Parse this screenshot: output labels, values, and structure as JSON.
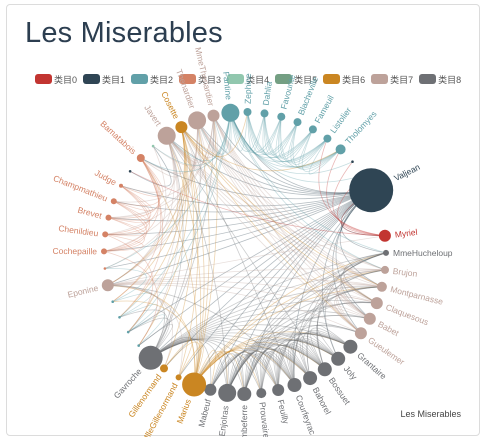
{
  "title": "Les Miserables",
  "caption": "Les Miserables",
  "legend": [
    {
      "label": "类目0",
      "color": "#c23531"
    },
    {
      "label": "类目1",
      "color": "#2f4554"
    },
    {
      "label": "类目2",
      "color": "#61a0a8"
    },
    {
      "label": "类目3",
      "color": "#d48265"
    },
    {
      "label": "类目4",
      "color": "#91c7ae"
    },
    {
      "label": "类目5",
      "color": "#749f83"
    },
    {
      "label": "类目6",
      "color": "#ca8622"
    },
    {
      "label": "类目7",
      "color": "#bda29a"
    },
    {
      "label": "类目8",
      "color": "#6e7074"
    }
  ],
  "graph": {
    "layout": "circular",
    "nodes": [
      {
        "name": "Myriel",
        "category": 0,
        "size": 6
      },
      {
        "name": "MmeHucheloup",
        "category": 8,
        "size": 3
      },
      {
        "name": "Brujon",
        "category": 7,
        "size": 4
      },
      {
        "name": "Montparnasse",
        "category": 7,
        "size": 5
      },
      {
        "name": "Claquesous",
        "category": 7,
        "size": 6
      },
      {
        "name": "Babet",
        "category": 7,
        "size": 6
      },
      {
        "name": "Gueulemer",
        "category": 7,
        "size": 6
      },
      {
        "name": "Grantaire",
        "category": 8,
        "size": 7
      },
      {
        "name": "Joly",
        "category": 8,
        "size": 7
      },
      {
        "name": "Bossuet",
        "category": 8,
        "size": 7
      },
      {
        "name": "Bahorel",
        "category": 8,
        "size": 7
      },
      {
        "name": "Courfeyrac",
        "category": 8,
        "size": 7
      },
      {
        "name": "Feuilly",
        "category": 8,
        "size": 6
      },
      {
        "name": "Prouvaire",
        "category": 8,
        "size": 5
      },
      {
        "name": "Combeferre",
        "category": 8,
        "size": 7
      },
      {
        "name": "Enjolras",
        "category": 8,
        "size": 9
      },
      {
        "name": "Mabeuf",
        "category": 8,
        "size": 6
      },
      {
        "name": "Marius",
        "category": 6,
        "size": 12
      },
      {
        "name": "MlleGillenormand",
        "category": 6,
        "size": 3
      },
      {
        "name": "Gillenormand",
        "category": 6,
        "size": 4
      },
      {
        "name": "Gavroche",
        "category": 8,
        "size": 12
      },
      {
        "name": "",
        "category": 2,
        "size": 1.3
      },
      {
        "name": "",
        "category": 2,
        "size": 1.3
      },
      {
        "name": "",
        "category": 2,
        "size": 1.3
      },
      {
        "name": "",
        "category": 2,
        "size": 1.3
      },
      {
        "name": "Eponine",
        "category": 7,
        "size": 6
      },
      {
        "name": "",
        "category": 3,
        "size": 1.3
      },
      {
        "name": "Cochepaille",
        "category": 3,
        "size": 3
      },
      {
        "name": "Chenildieu",
        "category": 3,
        "size": 3
      },
      {
        "name": "Brevet",
        "category": 3,
        "size": 3
      },
      {
        "name": "Champmathieu",
        "category": 3,
        "size": 3
      },
      {
        "name": "Judge",
        "category": 3,
        "size": 2
      },
      {
        "name": "",
        "category": 1,
        "size": 1.3
      },
      {
        "name": "Bamatabois",
        "category": 3,
        "size": 4
      },
      {
        "name": "",
        "category": 4,
        "size": 1.3
      },
      {
        "name": "Javert",
        "category": 7,
        "size": 9
      },
      {
        "name": "Cosette",
        "category": 6,
        "size": 6
      },
      {
        "name": "Thenardier",
        "category": 7,
        "size": 9
      },
      {
        "name": "MmeThenardier",
        "category": 7,
        "size": 6
      },
      {
        "name": "Fantine",
        "category": 2,
        "size": 9
      },
      {
        "name": "Zephine",
        "category": 2,
        "size": 4
      },
      {
        "name": "Dahlia",
        "category": 2,
        "size": 4
      },
      {
        "name": "Favourite",
        "category": 2,
        "size": 4
      },
      {
        "name": "Blacheville",
        "category": 2,
        "size": 4
      },
      {
        "name": "Fameuil",
        "category": 2,
        "size": 4
      },
      {
        "name": "Listolier",
        "category": 2,
        "size": 4
      },
      {
        "name": "Tholomyes",
        "category": 2,
        "size": 5
      },
      {
        "name": "",
        "category": 1,
        "size": 1.3
      },
      {
        "name": "",
        "category": 1,
        "size": 1.3
      },
      {
        "name": "Valjean",
        "category": 1,
        "size": 22
      }
    ],
    "links": [
      [
        49,
        0
      ],
      [
        49,
        1
      ],
      [
        49,
        3
      ],
      [
        49,
        5
      ],
      [
        49,
        6
      ],
      [
        49,
        8
      ],
      [
        49,
        11
      ],
      [
        49,
        14
      ],
      [
        49,
        15
      ],
      [
        49,
        16
      ],
      [
        49,
        17
      ],
      [
        49,
        18
      ],
      [
        49,
        19
      ],
      [
        49,
        20
      ],
      [
        49,
        25
      ],
      [
        49,
        27
      ],
      [
        49,
        28
      ],
      [
        49,
        29
      ],
      [
        49,
        30
      ],
      [
        49,
        31
      ],
      [
        49,
        33
      ],
      [
        49,
        35
      ],
      [
        49,
        36
      ],
      [
        49,
        37
      ],
      [
        49,
        38
      ],
      [
        49,
        39
      ],
      [
        49,
        26
      ],
      [
        49,
        21
      ],
      [
        49,
        22
      ],
      [
        0,
        47
      ],
      [
        0,
        48
      ],
      [
        0,
        46
      ],
      [
        0,
        49
      ],
      [
        0,
        32
      ],
      [
        0,
        45
      ],
      [
        20,
        7
      ],
      [
        20,
        8
      ],
      [
        20,
        9
      ],
      [
        20,
        10
      ],
      [
        20,
        11
      ],
      [
        20,
        12
      ],
      [
        20,
        13
      ],
      [
        20,
        14
      ],
      [
        20,
        15
      ],
      [
        20,
        16
      ],
      [
        20,
        17
      ],
      [
        20,
        25
      ],
      [
        20,
        35
      ],
      [
        20,
        37
      ],
      [
        20,
        38
      ],
      [
        20,
        3
      ],
      [
        20,
        4
      ],
      [
        20,
        5
      ],
      [
        20,
        6
      ],
      [
        20,
        2
      ],
      [
        20,
        1
      ],
      [
        17,
        7
      ],
      [
        17,
        8
      ],
      [
        17,
        9
      ],
      [
        17,
        10
      ],
      [
        17,
        11
      ],
      [
        17,
        12
      ],
      [
        17,
        13
      ],
      [
        17,
        14
      ],
      [
        17,
        15
      ],
      [
        17,
        16
      ],
      [
        17,
        18
      ],
      [
        17,
        19
      ],
      [
        17,
        25
      ],
      [
        17,
        36
      ],
      [
        17,
        37
      ],
      [
        17,
        38
      ],
      [
        17,
        1
      ],
      [
        17,
        2
      ],
      [
        17,
        3
      ],
      [
        17,
        33
      ],
      [
        17,
        35
      ],
      [
        15,
        7
      ],
      [
        15,
        8
      ],
      [
        15,
        9
      ],
      [
        15,
        10
      ],
      [
        15,
        11
      ],
      [
        15,
        12
      ],
      [
        15,
        13
      ],
      [
        15,
        14
      ],
      [
        15,
        16
      ],
      [
        15,
        1
      ],
      [
        15,
        35
      ],
      [
        15,
        2
      ],
      [
        15,
        3
      ],
      [
        15,
        4
      ],
      [
        15,
        5
      ],
      [
        15,
        6
      ],
      [
        11,
        7
      ],
      [
        11,
        8
      ],
      [
        11,
        9
      ],
      [
        11,
        10
      ],
      [
        11,
        12
      ],
      [
        11,
        13
      ],
      [
        11,
        14
      ],
      [
        11,
        16
      ],
      [
        11,
        1
      ],
      [
        11,
        25
      ],
      [
        11,
        36
      ],
      [
        11,
        3
      ],
      [
        11,
        4
      ],
      [
        9,
        7
      ],
      [
        9,
        8
      ],
      [
        9,
        10
      ],
      [
        9,
        12
      ],
      [
        9,
        13
      ],
      [
        9,
        14
      ],
      [
        9,
        16
      ],
      [
        9,
        1
      ],
      [
        9,
        35
      ],
      [
        9,
        2
      ],
      [
        9,
        3
      ],
      [
        14,
        7
      ],
      [
        14,
        8
      ],
      [
        14,
        10
      ],
      [
        14,
        12
      ],
      [
        14,
        13
      ],
      [
        14,
        16
      ],
      [
        14,
        1
      ],
      [
        14,
        4
      ],
      [
        14,
        5
      ],
      [
        10,
        7
      ],
      [
        10,
        8
      ],
      [
        10,
        12
      ],
      [
        10,
        13
      ],
      [
        10,
        16
      ],
      [
        10,
        1
      ],
      [
        10,
        2
      ],
      [
        8,
        7
      ],
      [
        8,
        12
      ],
      [
        8,
        13
      ],
      [
        8,
        16
      ],
      [
        8,
        1
      ],
      [
        12,
        7
      ],
      [
        12,
        13
      ],
      [
        12,
        16
      ],
      [
        12,
        3
      ],
      [
        12,
        6
      ],
      [
        37,
        2
      ],
      [
        37,
        3
      ],
      [
        37,
        4
      ],
      [
        37,
        5
      ],
      [
        37,
        6
      ],
      [
        37,
        38
      ],
      [
        37,
        35
      ],
      [
        37,
        25
      ],
      [
        37,
        36
      ],
      [
        37,
        33
      ],
      [
        37,
        26
      ],
      [
        37,
        27
      ],
      [
        37,
        28
      ],
      [
        38,
        2
      ],
      [
        38,
        3
      ],
      [
        38,
        4
      ],
      [
        38,
        5
      ],
      [
        38,
        6
      ],
      [
        38,
        35
      ],
      [
        38,
        25
      ],
      [
        38,
        36
      ],
      [
        38,
        34
      ],
      [
        38,
        30
      ],
      [
        38,
        29
      ],
      [
        35,
        2
      ],
      [
        35,
        3
      ],
      [
        35,
        4
      ],
      [
        35,
        5
      ],
      [
        35,
        6
      ],
      [
        35,
        36
      ],
      [
        35,
        25
      ],
      [
        35,
        33
      ],
      [
        35,
        31
      ],
      [
        35,
        29
      ],
      [
        35,
        21
      ],
      [
        35,
        22
      ],
      [
        36,
        18
      ],
      [
        36,
        19
      ],
      [
        36,
        25
      ],
      [
        36,
        21
      ],
      [
        36,
        22
      ],
      [
        36,
        23
      ],
      [
        36,
        24
      ],
      [
        36,
        6
      ],
      [
        36,
        3
      ],
      [
        36,
        4
      ],
      [
        25,
        2
      ],
      [
        25,
        3
      ],
      [
        25,
        4
      ],
      [
        25,
        5
      ],
      [
        25,
        6
      ],
      [
        25,
        18
      ],
      [
        25,
        19
      ],
      [
        25,
        34
      ],
      [
        25,
        0
      ],
      [
        33,
        27
      ],
      [
        33,
        28
      ],
      [
        33,
        29
      ],
      [
        33,
        30
      ],
      [
        33,
        31
      ],
      [
        33,
        24
      ],
      [
        33,
        23
      ],
      [
        31,
        27
      ],
      [
        31,
        28
      ],
      [
        31,
        29
      ],
      [
        31,
        30
      ],
      [
        30,
        27
      ],
      [
        30,
        28
      ],
      [
        30,
        29
      ],
      [
        29,
        27
      ],
      [
        29,
        28
      ],
      [
        28,
        27
      ],
      [
        39,
        40
      ],
      [
        39,
        41
      ],
      [
        39,
        42
      ],
      [
        39,
        43
      ],
      [
        39,
        44
      ],
      [
        39,
        45
      ],
      [
        39,
        46
      ],
      [
        39,
        47
      ],
      [
        39,
        48
      ],
      [
        39,
        33
      ],
      [
        39,
        35
      ],
      [
        39,
        37
      ],
      [
        39,
        38
      ],
      [
        39,
        22
      ],
      [
        39,
        23
      ],
      [
        39,
        34
      ],
      [
        39,
        26
      ],
      [
        39,
        1
      ],
      [
        39,
        2
      ],
      [
        46,
        40
      ],
      [
        46,
        41
      ],
      [
        46,
        42
      ],
      [
        46,
        43
      ],
      [
        46,
        44
      ],
      [
        46,
        45
      ],
      [
        45,
        40
      ],
      [
        45,
        41
      ],
      [
        45,
        42
      ],
      [
        45,
        43
      ],
      [
        45,
        44
      ],
      [
        44,
        40
      ],
      [
        44,
        41
      ],
      [
        44,
        42
      ],
      [
        44,
        43
      ],
      [
        43,
        40
      ],
      [
        43,
        41
      ],
      [
        43,
        42
      ],
      [
        42,
        40
      ],
      [
        42,
        41
      ],
      [
        41,
        40
      ],
      [
        2,
        3
      ],
      [
        2,
        4
      ],
      [
        2,
        5
      ],
      [
        2,
        6
      ],
      [
        3,
        4
      ],
      [
        3,
        5
      ],
      [
        3,
        6
      ],
      [
        4,
        5
      ],
      [
        4,
        6
      ],
      [
        5,
        6
      ],
      [
        1,
        4
      ],
      [
        1,
        5
      ],
      [
        18,
        19
      ],
      [
        16,
        7
      ],
      [
        13,
        7
      ],
      [
        21,
        22
      ],
      [
        22,
        23
      ],
      [
        23,
        24
      ],
      [
        24,
        26
      ],
      [
        32,
        34
      ],
      [
        27,
        21
      ],
      [
        28,
        22
      ],
      [
        36,
        40
      ],
      [
        36,
        46
      ],
      [
        20,
        21
      ],
      [
        20,
        22
      ],
      [
        20,
        23
      ],
      [
        17,
        24
      ]
    ]
  }
}
